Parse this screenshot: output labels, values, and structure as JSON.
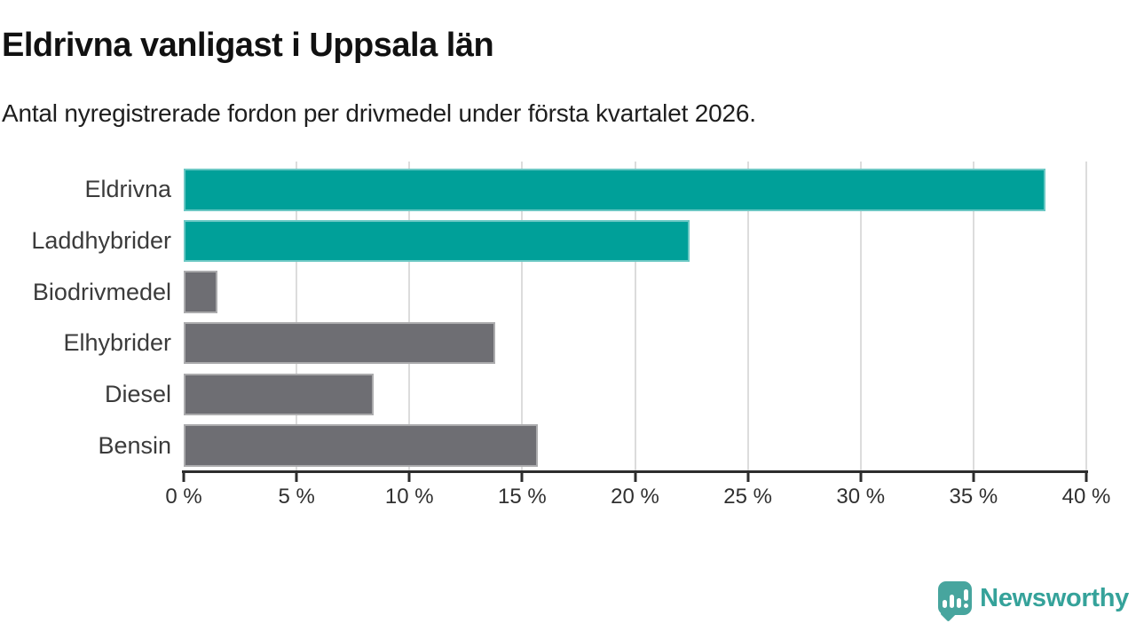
{
  "header": {
    "title": "Eldrivna vanligast i Uppsala län",
    "subtitle": "Antal nyregistrerade fordon per drivmedel under första kvartalet 2026."
  },
  "chart_data": {
    "type": "bar",
    "orientation": "horizontal",
    "title": "Eldrivna vanligast i Uppsala län",
    "subtitle": "Antal nyregistrerade fordon per drivmedel under första kvartalet 2026.",
    "categories": [
      "Eldrivna",
      "Laddhybrider",
      "Biodrivmedel",
      "Elhybrider",
      "Diesel",
      "Bensin"
    ],
    "values": [
      38.2,
      22.4,
      1.5,
      13.8,
      8.4,
      15.7
    ],
    "unit": "%",
    "bar_colors": [
      "#00a099",
      "#00a099",
      "#6e6e73",
      "#6e6e73",
      "#6e6e73",
      "#6e6e73"
    ],
    "highlight_color": "#00a099",
    "default_color": "#6e6e73",
    "xlim": [
      0,
      40
    ],
    "x_ticks": [
      0,
      5,
      10,
      15,
      20,
      25,
      30,
      35,
      40
    ],
    "x_tick_labels": [
      "0 %",
      "5 %",
      "10 %",
      "15 %",
      "20 %",
      "25 %",
      "30 %",
      "35 %",
      "40 %"
    ],
    "grid": true,
    "legend": false,
    "gridline_color": "#dcdcdc",
    "axis_color": "#2d2d2d"
  },
  "footer": {
    "brand": "Newsworthy",
    "brand_color": "#35a29a",
    "logo_icon": "bar-chart-speech-bubble-icon"
  },
  "layout_geometry": {
    "bar_row_first_top": 8,
    "bar_row_pitch": 57.66,
    "bar_height": 47.5
  }
}
